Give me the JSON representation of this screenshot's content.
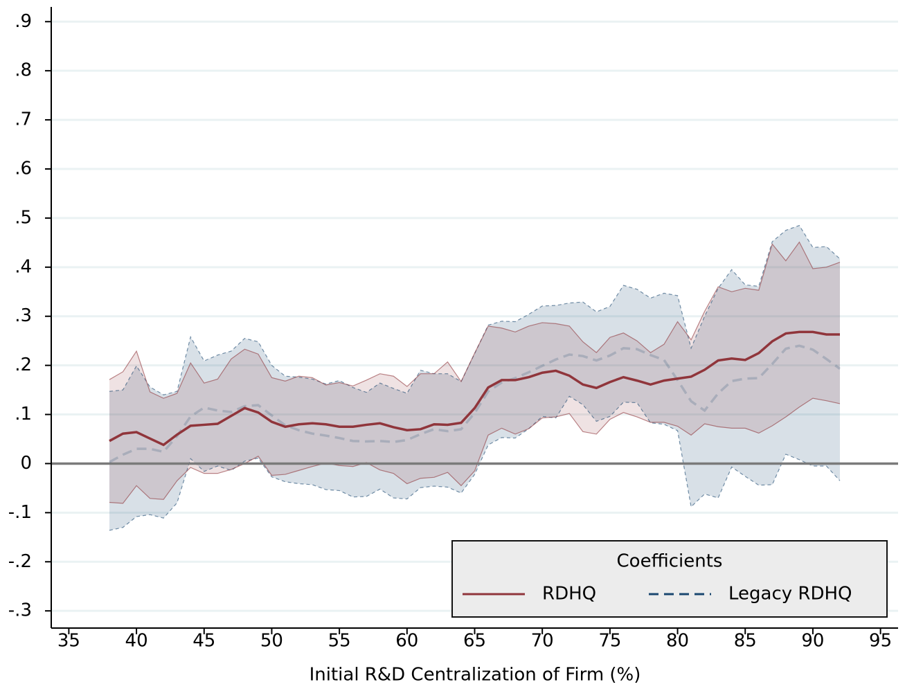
{
  "chart_data": {
    "type": "line",
    "x_label": "Initial R&D Centralization of Firm (%)",
    "x": [
      38,
      39,
      40,
      41,
      42,
      43,
      44,
      45,
      46,
      47,
      48,
      49,
      50,
      51,
      52,
      53,
      54,
      55,
      56,
      57,
      58,
      59,
      60,
      61,
      62,
      63,
      64,
      65,
      66,
      67,
      68,
      69,
      70,
      71,
      72,
      73,
      74,
      75,
      76,
      77,
      78,
      79,
      80,
      81,
      82,
      83,
      84,
      85,
      86,
      87,
      88,
      89,
      90,
      91,
      92
    ],
    "series": [
      {
        "name": "Legacy RDHQ",
        "color": "#1a476f",
        "band_color": "#1a476f",
        "dash": true,
        "values": [
          0.003,
          0.018,
          0.03,
          0.03,
          0.024,
          0.056,
          0.096,
          0.114,
          0.108,
          0.105,
          0.117,
          0.119,
          0.098,
          0.078,
          0.068,
          0.061,
          0.057,
          0.052,
          0.046,
          0.045,
          0.046,
          0.044,
          0.048,
          0.06,
          0.07,
          0.066,
          0.07,
          0.103,
          0.147,
          0.165,
          0.174,
          0.186,
          0.199,
          0.212,
          0.222,
          0.219,
          0.21,
          0.22,
          0.235,
          0.233,
          0.221,
          0.211,
          0.17,
          0.127,
          0.108,
          0.143,
          0.168,
          0.173,
          0.174,
          0.203,
          0.234,
          0.24,
          0.232,
          0.213,
          0.193
        ],
        "upper": [
          0.147,
          0.15,
          0.199,
          0.156,
          0.14,
          0.147,
          0.258,
          0.209,
          0.221,
          0.229,
          0.255,
          0.248,
          0.2,
          0.178,
          0.176,
          0.172,
          0.162,
          0.169,
          0.155,
          0.145,
          0.164,
          0.153,
          0.143,
          0.19,
          0.183,
          0.183,
          0.167,
          0.224,
          0.282,
          0.29,
          0.289,
          0.304,
          0.321,
          0.322,
          0.327,
          0.329,
          0.309,
          0.32,
          0.363,
          0.355,
          0.337,
          0.347,
          0.342,
          0.235,
          0.3,
          0.357,
          0.395,
          0.364,
          0.361,
          0.452,
          0.475,
          0.485,
          0.44,
          0.442,
          0.417
        ],
        "lower": [
          -0.136,
          -0.13,
          -0.108,
          -0.104,
          -0.111,
          -0.08,
          0.01,
          -0.016,
          -0.005,
          -0.014,
          0.005,
          0.011,
          -0.027,
          -0.037,
          -0.041,
          -0.043,
          -0.053,
          -0.055,
          -0.068,
          -0.067,
          -0.052,
          -0.07,
          -0.072,
          -0.049,
          -0.046,
          -0.048,
          -0.06,
          -0.022,
          0.038,
          0.053,
          0.052,
          0.071,
          0.096,
          0.093,
          0.137,
          0.12,
          0.086,
          0.096,
          0.125,
          0.124,
          0.083,
          0.08,
          0.067,
          -0.088,
          -0.062,
          -0.07,
          -0.007,
          -0.026,
          -0.044,
          -0.043,
          0.019,
          0.008,
          -0.005,
          -0.005,
          -0.035
        ]
      },
      {
        "name": "RDHQ",
        "color": "#90353b",
        "band_color": "#90353b",
        "dash": false,
        "values": [
          0.046,
          0.061,
          0.064,
          0.051,
          0.038,
          0.059,
          0.077,
          0.079,
          0.081,
          0.097,
          0.113,
          0.104,
          0.085,
          0.075,
          0.08,
          0.082,
          0.08,
          0.075,
          0.075,
          0.079,
          0.082,
          0.074,
          0.068,
          0.07,
          0.08,
          0.079,
          0.083,
          0.113,
          0.155,
          0.17,
          0.17,
          0.176,
          0.185,
          0.189,
          0.179,
          0.161,
          0.154,
          0.166,
          0.176,
          0.169,
          0.161,
          0.169,
          0.173,
          0.177,
          0.191,
          0.21,
          0.214,
          0.211,
          0.225,
          0.249,
          0.265,
          0.268,
          0.268,
          0.263,
          0.263
        ],
        "upper": [
          0.171,
          0.187,
          0.229,
          0.146,
          0.133,
          0.143,
          0.205,
          0.164,
          0.172,
          0.213,
          0.233,
          0.223,
          0.175,
          0.168,
          0.178,
          0.175,
          0.16,
          0.165,
          0.158,
          0.17,
          0.183,
          0.178,
          0.157,
          0.183,
          0.183,
          0.207,
          0.167,
          0.225,
          0.28,
          0.276,
          0.268,
          0.28,
          0.287,
          0.285,
          0.28,
          0.248,
          0.226,
          0.257,
          0.266,
          0.25,
          0.226,
          0.243,
          0.289,
          0.252,
          0.31,
          0.36,
          0.35,
          0.357,
          0.353,
          0.447,
          0.413,
          0.451,
          0.397,
          0.4,
          0.41
        ],
        "lower": [
          -0.079,
          -0.081,
          -0.045,
          -0.071,
          -0.073,
          -0.035,
          -0.008,
          -0.02,
          -0.02,
          -0.012,
          0.0,
          0.015,
          -0.024,
          -0.022,
          -0.014,
          -0.006,
          0.001,
          -0.004,
          -0.006,
          0.002,
          -0.013,
          -0.02,
          -0.041,
          -0.03,
          -0.028,
          -0.018,
          -0.045,
          -0.015,
          0.058,
          0.072,
          0.06,
          0.071,
          0.093,
          0.095,
          0.102,
          0.065,
          0.06,
          0.09,
          0.104,
          0.095,
          0.084,
          0.084,
          0.076,
          0.058,
          0.081,
          0.075,
          0.072,
          0.072,
          0.062,
          0.077,
          0.095,
          0.115,
          0.133,
          0.128,
          0.122
        ]
      }
    ],
    "legend_title": "Coefficients",
    "legend_order": [
      1,
      0
    ],
    "legend_position": "lower right",
    "xlim": [
      33.7,
      96.3
    ],
    "ylim": [
      -0.335,
      0.93
    ],
    "xticks": [
      35,
      40,
      45,
      50,
      55,
      60,
      65,
      70,
      75,
      80,
      85,
      90,
      95
    ],
    "yticks": [
      {
        "value": 0.9,
        "label": ".9"
      },
      {
        "value": 0.8,
        "label": ".8"
      },
      {
        "value": 0.7,
        "label": ".7"
      },
      {
        "value": 0.6,
        "label": ".6"
      },
      {
        "value": 0.5,
        "label": ".5"
      },
      {
        "value": 0.4,
        "label": ".4"
      },
      {
        "value": 0.3,
        "label": ".3"
      },
      {
        "value": 0.2,
        "label": ".2"
      },
      {
        "value": 0.1,
        "label": ".1"
      },
      0,
      {
        "value": -0.1,
        "label": "-.1"
      },
      {
        "value": -0.2,
        "label": "-.2"
      },
      {
        "value": -0.3,
        "label": "-.3"
      }
    ],
    "grid": true,
    "zero_line": true
  }
}
